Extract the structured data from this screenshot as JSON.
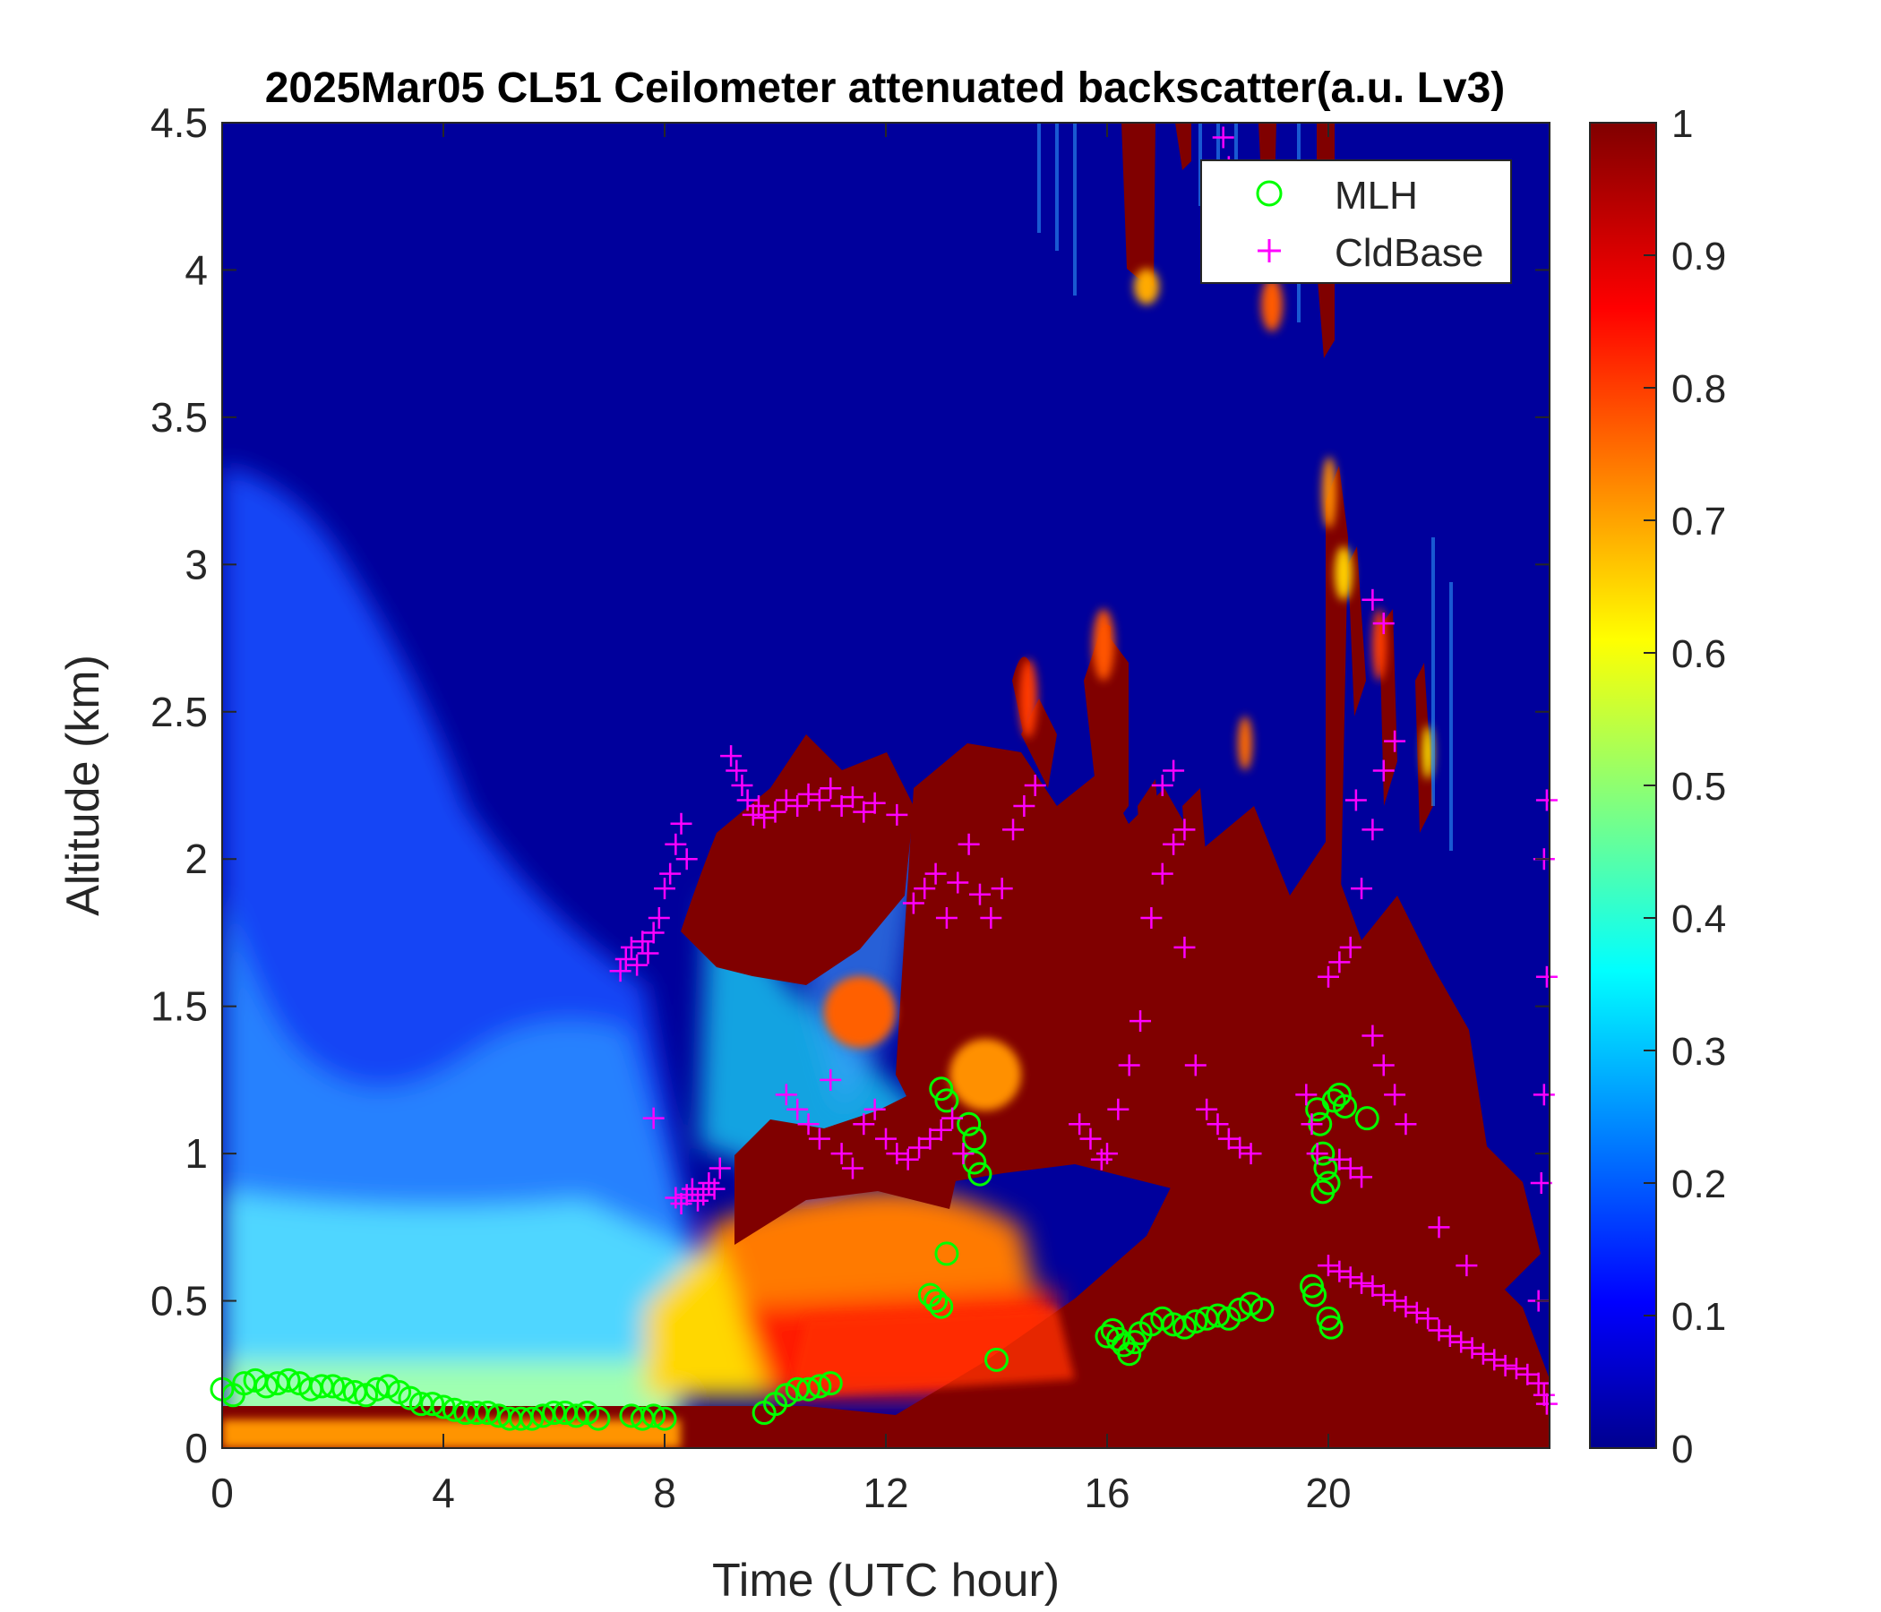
{
  "chart_data": {
    "type": "heatmap",
    "title": "2025Mar05 CL51 Ceilometer attenuated backscatter(a.u. Lv3)",
    "xlabel": "Time (UTC hour)",
    "ylabel": "Altitude (km)",
    "xlim": [
      0,
      24
    ],
    "ylim": [
      0,
      4.5
    ],
    "x_ticks": [
      0,
      4,
      8,
      12,
      16,
      20
    ],
    "y_ticks": [
      0,
      0.5,
      1,
      1.5,
      2,
      2.5,
      3,
      3.5,
      4,
      4.5
    ],
    "x_tick_labels": [
      "0",
      "4",
      "8",
      "12",
      "16",
      "20"
    ],
    "y_tick_labels": [
      "0",
      "0.5",
      "1",
      "1.5",
      "2",
      "2.5",
      "3",
      "3.5",
      "4",
      "4.5"
    ],
    "colorbar": {
      "colormap": "jet",
      "range": [
        0,
        1
      ],
      "ticks": [
        0,
        0.1,
        0.2,
        0.3,
        0.4,
        0.5,
        0.6,
        0.7,
        0.8,
        0.9,
        1
      ],
      "tick_labels": [
        "0",
        "0.1",
        "0.2",
        "0.3",
        "0.4",
        "0.5",
        "0.6",
        "0.7",
        "0.8",
        "0.9",
        "1"
      ]
    },
    "legend": {
      "placement": "top-right",
      "entries": [
        {
          "label": "MLH",
          "marker": "circle",
          "color": "#00ff00"
        },
        {
          "label": "CldBase",
          "marker": "plus",
          "color": "#ff00ff"
        }
      ]
    },
    "series": [
      {
        "name": "MLH",
        "marker": "circle",
        "color": "#00ff00",
        "points": [
          [
            0.0,
            0.2
          ],
          [
            0.2,
            0.18
          ],
          [
            0.4,
            0.22
          ],
          [
            0.6,
            0.23
          ],
          [
            0.8,
            0.21
          ],
          [
            1.0,
            0.22
          ],
          [
            1.2,
            0.23
          ],
          [
            1.4,
            0.22
          ],
          [
            1.6,
            0.2
          ],
          [
            1.8,
            0.21
          ],
          [
            2.0,
            0.21
          ],
          [
            2.2,
            0.2
          ],
          [
            2.4,
            0.19
          ],
          [
            2.6,
            0.18
          ],
          [
            2.8,
            0.2
          ],
          [
            3.0,
            0.21
          ],
          [
            3.2,
            0.19
          ],
          [
            3.4,
            0.17
          ],
          [
            3.6,
            0.15
          ],
          [
            3.8,
            0.15
          ],
          [
            4.0,
            0.14
          ],
          [
            4.2,
            0.13
          ],
          [
            4.4,
            0.12
          ],
          [
            4.6,
            0.12
          ],
          [
            4.8,
            0.12
          ],
          [
            5.0,
            0.11
          ],
          [
            5.2,
            0.1
          ],
          [
            5.4,
            0.1
          ],
          [
            5.6,
            0.1
          ],
          [
            5.8,
            0.11
          ],
          [
            6.0,
            0.12
          ],
          [
            6.2,
            0.12
          ],
          [
            6.4,
            0.11
          ],
          [
            6.6,
            0.12
          ],
          [
            6.8,
            0.1
          ],
          [
            7.4,
            0.11
          ],
          [
            7.6,
            0.1
          ],
          [
            7.8,
            0.11
          ],
          [
            8.0,
            0.1
          ],
          [
            9.8,
            0.12
          ],
          [
            10.0,
            0.15
          ],
          [
            10.2,
            0.18
          ],
          [
            10.4,
            0.2
          ],
          [
            10.6,
            0.2
          ],
          [
            10.8,
            0.21
          ],
          [
            11.0,
            0.22
          ],
          [
            12.8,
            0.52
          ],
          [
            12.9,
            0.5
          ],
          [
            13.0,
            0.48
          ],
          [
            13.1,
            0.66
          ],
          [
            13.0,
            1.22
          ],
          [
            13.1,
            1.18
          ],
          [
            13.5,
            1.1
          ],
          [
            13.6,
            1.05
          ],
          [
            13.6,
            0.97
          ],
          [
            13.7,
            0.93
          ],
          [
            14.0,
            0.3
          ],
          [
            16.0,
            0.38
          ],
          [
            16.1,
            0.4
          ],
          [
            16.2,
            0.37
          ],
          [
            16.3,
            0.35
          ],
          [
            16.4,
            0.32
          ],
          [
            16.5,
            0.36
          ],
          [
            16.6,
            0.39
          ],
          [
            16.8,
            0.42
          ],
          [
            17.0,
            0.44
          ],
          [
            17.2,
            0.42
          ],
          [
            17.4,
            0.41
          ],
          [
            17.6,
            0.43
          ],
          [
            17.8,
            0.44
          ],
          [
            18.0,
            0.45
          ],
          [
            18.2,
            0.44
          ],
          [
            18.4,
            0.47
          ],
          [
            18.6,
            0.49
          ],
          [
            18.8,
            0.47
          ],
          [
            19.7,
            0.55
          ],
          [
            19.75,
            0.52
          ],
          [
            19.8,
            1.15
          ],
          [
            19.85,
            1.1
          ],
          [
            19.9,
            1.0
          ],
          [
            19.95,
            0.95
          ],
          [
            20.0,
            0.9
          ],
          [
            19.9,
            0.87
          ],
          [
            20.0,
            0.44
          ],
          [
            20.05,
            0.41
          ],
          [
            20.1,
            1.18
          ],
          [
            20.2,
            1.2
          ],
          [
            20.3,
            1.16
          ],
          [
            20.7,
            1.12
          ]
        ]
      },
      {
        "name": "CldBase",
        "marker": "plus",
        "color": "#ff00ff",
        "points": [
          [
            7.2,
            1.62
          ],
          [
            7.3,
            1.66
          ],
          [
            7.4,
            1.7
          ],
          [
            7.5,
            1.64
          ],
          [
            7.6,
            1.72
          ],
          [
            7.7,
            1.68
          ],
          [
            7.8,
            1.75
          ],
          [
            7.9,
            1.8
          ],
          [
            8.0,
            1.9
          ],
          [
            8.1,
            1.95
          ],
          [
            8.2,
            2.05
          ],
          [
            8.3,
            2.12
          ],
          [
            8.4,
            2.0
          ],
          [
            7.8,
            1.12
          ],
          [
            8.2,
            0.85
          ],
          [
            8.3,
            0.83
          ],
          [
            8.4,
            0.86
          ],
          [
            8.5,
            0.88
          ],
          [
            8.6,
            0.84
          ],
          [
            8.7,
            0.86
          ],
          [
            8.8,
            0.9
          ],
          [
            8.9,
            0.88
          ],
          [
            9.0,
            0.95
          ],
          [
            9.2,
            2.35
          ],
          [
            9.3,
            2.3
          ],
          [
            9.4,
            2.25
          ],
          [
            9.5,
            2.2
          ],
          [
            9.6,
            2.15
          ],
          [
            9.7,
            2.18
          ],
          [
            9.8,
            2.14
          ],
          [
            10.0,
            2.16
          ],
          [
            10.2,
            2.2
          ],
          [
            10.4,
            2.18
          ],
          [
            10.6,
            2.22
          ],
          [
            10.8,
            2.2
          ],
          [
            11.0,
            2.24
          ],
          [
            11.2,
            2.18
          ],
          [
            11.4,
            2.21
          ],
          [
            11.6,
            2.16
          ],
          [
            11.8,
            2.19
          ],
          [
            10.2,
            1.2
          ],
          [
            10.4,
            1.15
          ],
          [
            10.6,
            1.1
          ],
          [
            10.8,
            1.05
          ],
          [
            11.0,
            1.25
          ],
          [
            11.2,
            1.0
          ],
          [
            11.4,
            0.95
          ],
          [
            11.6,
            1.1
          ],
          [
            11.8,
            1.15
          ],
          [
            12.0,
            1.05
          ],
          [
            12.2,
            1.0
          ],
          [
            12.4,
            0.98
          ],
          [
            12.6,
            1.02
          ],
          [
            12.2,
            2.15
          ],
          [
            12.5,
            1.85
          ],
          [
            12.7,
            1.9
          ],
          [
            12.9,
            1.95
          ],
          [
            13.1,
            1.8
          ],
          [
            13.3,
            1.92
          ],
          [
            13.5,
            2.05
          ],
          [
            13.7,
            1.88
          ],
          [
            13.9,
            1.8
          ],
          [
            14.1,
            1.9
          ],
          [
            14.3,
            2.1
          ],
          [
            14.5,
            2.18
          ],
          [
            14.7,
            2.25
          ],
          [
            12.8,
            1.05
          ],
          [
            13.0,
            1.08
          ],
          [
            13.2,
            1.12
          ],
          [
            13.4,
            1.0
          ],
          [
            15.5,
            1.1
          ],
          [
            15.7,
            1.05
          ],
          [
            15.9,
            0.98
          ],
          [
            16.0,
            1.0
          ],
          [
            16.2,
            1.15
          ],
          [
            16.4,
            1.3
          ],
          [
            16.6,
            1.45
          ],
          [
            16.8,
            1.8
          ],
          [
            17.0,
            1.95
          ],
          [
            17.2,
            2.05
          ],
          [
            17.4,
            1.7
          ],
          [
            17.6,
            1.3
          ],
          [
            17.8,
            1.15
          ],
          [
            18.0,
            1.1
          ],
          [
            18.2,
            1.05
          ],
          [
            18.4,
            1.02
          ],
          [
            18.6,
            1.0
          ],
          [
            17.0,
            2.25
          ],
          [
            17.2,
            2.3
          ],
          [
            17.4,
            2.1
          ],
          [
            18.1,
            4.45
          ],
          [
            18.2,
            4.35
          ],
          [
            19.6,
            1.2
          ],
          [
            19.7,
            1.1
          ],
          [
            19.8,
            1.0
          ],
          [
            20.0,
            1.6
          ],
          [
            20.2,
            1.65
          ],
          [
            20.4,
            1.7
          ],
          [
            20.6,
            1.9
          ],
          [
            20.8,
            2.1
          ],
          [
            21.0,
            2.3
          ],
          [
            21.2,
            2.4
          ],
          [
            20.8,
            2.88
          ],
          [
            21.0,
            2.8
          ],
          [
            20.5,
            2.2
          ],
          [
            20.8,
            1.4
          ],
          [
            21.0,
            1.3
          ],
          [
            21.2,
            1.2
          ],
          [
            21.4,
            1.1
          ],
          [
            20.2,
            0.98
          ],
          [
            20.4,
            0.95
          ],
          [
            20.6,
            0.92
          ],
          [
            20.0,
            0.62
          ],
          [
            20.2,
            0.6
          ],
          [
            20.4,
            0.58
          ],
          [
            20.6,
            0.56
          ],
          [
            20.8,
            0.55
          ],
          [
            21.0,
            0.52
          ],
          [
            21.2,
            0.5
          ],
          [
            21.4,
            0.48
          ],
          [
            21.6,
            0.46
          ],
          [
            21.8,
            0.44
          ],
          [
            22.0,
            0.4
          ],
          [
            22.2,
            0.38
          ],
          [
            22.4,
            0.36
          ],
          [
            22.6,
            0.34
          ],
          [
            22.8,
            0.32
          ],
          [
            23.0,
            0.3
          ],
          [
            23.2,
            0.28
          ],
          [
            23.4,
            0.27
          ],
          [
            23.6,
            0.25
          ],
          [
            23.8,
            0.22
          ],
          [
            23.9,
            0.18
          ],
          [
            23.95,
            0.15
          ],
          [
            23.8,
            0.5
          ],
          [
            23.85,
            0.9
          ],
          [
            23.9,
            1.2
          ],
          [
            23.95,
            1.6
          ],
          [
            23.9,
            2.0
          ],
          [
            23.95,
            2.2
          ],
          [
            22.0,
            0.75
          ],
          [
            22.5,
            0.62
          ]
        ]
      }
    ]
  }
}
